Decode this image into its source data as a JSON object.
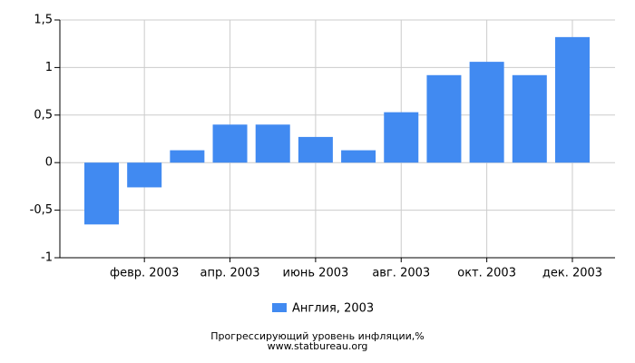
{
  "chart_data": {
    "type": "bar",
    "title": "Прогрессирующий уровень инфляции,%",
    "subtitle": "www.statbureau.org",
    "categories": [
      null,
      "февр. 2003",
      null,
      "апр. 2003",
      null,
      "июнь 2003",
      null,
      "авг. 2003",
      null,
      "окт. 2003",
      null,
      "дек. 2003"
    ],
    "series": [
      {
        "name": "Англия, 2003",
        "color": "#418af1",
        "values": [
          -0.65,
          -0.26,
          0.13,
          0.4,
          0.4,
          0.27,
          0.13,
          0.53,
          0.92,
          1.06,
          0.92,
          1.32
        ]
      }
    ],
    "ylim": [
      -1,
      1.5
    ],
    "yticks": [
      {
        "value": -1,
        "label": "-1"
      },
      {
        "value": -0.5,
        "label": "-0,5"
      },
      0,
      {
        "value": 0.5,
        "label": "0,5"
      },
      1,
      {
        "value": 1.5,
        "label": "1,5"
      }
    ],
    "grid": true
  }
}
